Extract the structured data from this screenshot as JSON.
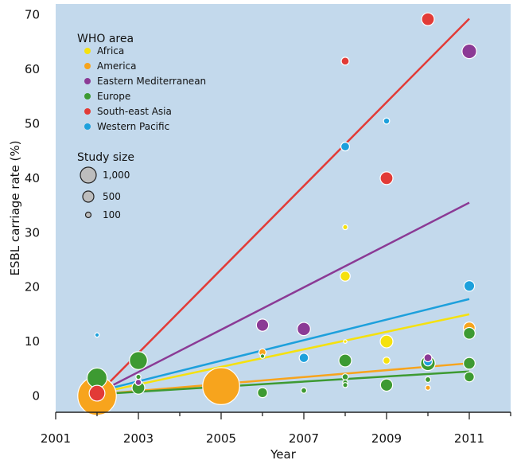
{
  "chart_data": {
    "type": "scatter",
    "xlabel": "Year",
    "ylabel": "ESBL carriage rate (%)",
    "xlim": [
      2001,
      2012
    ],
    "ylim": [
      -3,
      72
    ],
    "x_ticks": [
      2001,
      2003,
      2005,
      2007,
      2009,
      2011
    ],
    "x_tick_labels": [
      "2001",
      "2003",
      "2005",
      "2007",
      "2009",
      "2011"
    ],
    "y_ticks": [
      0,
      10,
      20,
      30,
      40,
      50,
      60,
      70
    ],
    "y_tick_labels": [
      "0",
      "10",
      "20",
      "30",
      "40",
      "50",
      "60",
      "70"
    ],
    "grid": false,
    "background": "#c3d9ec",
    "legend": {
      "position": "top-left",
      "group_title": "WHO area",
      "size_title": "Study size",
      "size_entries": [
        {
          "label": "1,000",
          "size": 1000
        },
        {
          "label": "500",
          "size": 500
        },
        {
          "label": "100",
          "size": 100
        }
      ]
    },
    "series": [
      {
        "name": "Africa",
        "color": "#f5e10e",
        "points": [
          {
            "x": 2003,
            "y": 2.5,
            "size": 30
          },
          {
            "x": 2008,
            "y": 31,
            "size": 20
          },
          {
            "x": 2008,
            "y": 22,
            "size": 80
          },
          {
            "x": 2008,
            "y": 10,
            "size": 10
          },
          {
            "x": 2009,
            "y": 10,
            "size": 130
          },
          {
            "x": 2009,
            "y": 6.5,
            "size": 40
          }
        ],
        "trend": [
          {
            "x": 2002,
            "y": 0.5
          },
          {
            "x": 2011,
            "y": 15
          }
        ]
      },
      {
        "name": "America",
        "color": "#f7a41d",
        "points": [
          {
            "x": 2002,
            "y": 0,
            "size": 1200
          },
          {
            "x": 2005,
            "y": 1.8,
            "size": 1100
          },
          {
            "x": 2006,
            "y": 8,
            "size": 40
          },
          {
            "x": 2010,
            "y": 1.5,
            "size": 20
          },
          {
            "x": 2011,
            "y": 12.5,
            "size": 110
          }
        ],
        "trend": [
          {
            "x": 2002,
            "y": 0.3
          },
          {
            "x": 2011,
            "y": 6
          }
        ]
      },
      {
        "name": "Eastern Mediterranean",
        "color": "#8b3a95",
        "points": [
          {
            "x": 2003,
            "y": 2.5,
            "size": 30
          },
          {
            "x": 2006,
            "y": 13,
            "size": 120
          },
          {
            "x": 2007,
            "y": 12.3,
            "size": 140
          },
          {
            "x": 2010,
            "y": 7,
            "size": 50
          },
          {
            "x": 2011,
            "y": 63.3,
            "size": 170
          }
        ],
        "trend": [
          {
            "x": 2002,
            "y": 0.5
          },
          {
            "x": 2011,
            "y": 35.5
          }
        ]
      },
      {
        "name": "Europe",
        "color": "#3d9a32",
        "points": [
          {
            "x": 2002,
            "y": 3.3,
            "size": 320
          },
          {
            "x": 2003,
            "y": 6.5,
            "size": 260
          },
          {
            "x": 2003,
            "y": 1.5,
            "size": 130
          },
          {
            "x": 2003,
            "y": 3.5,
            "size": 20
          },
          {
            "x": 2006,
            "y": 0.6,
            "size": 80
          },
          {
            "x": 2006,
            "y": 7.3,
            "size": 15
          },
          {
            "x": 2007,
            "y": 1,
            "size": 25
          },
          {
            "x": 2008,
            "y": 6.5,
            "size": 130
          },
          {
            "x": 2008,
            "y": 3.5,
            "size": 30
          },
          {
            "x": 2008,
            "y": 2.5,
            "size": 20
          },
          {
            "x": 2008,
            "y": 2,
            "size": 20
          },
          {
            "x": 2009,
            "y": 2,
            "size": 120
          },
          {
            "x": 2010,
            "y": 6,
            "size": 170
          },
          {
            "x": 2010,
            "y": 3,
            "size": 25
          },
          {
            "x": 2011,
            "y": 11.5,
            "size": 110
          },
          {
            "x": 2011,
            "y": 6,
            "size": 110
          },
          {
            "x": 2011,
            "y": 3.5,
            "size": 80
          }
        ],
        "trend": [
          {
            "x": 2002,
            "y": 0.3
          },
          {
            "x": 2011,
            "y": 4.5
          }
        ]
      },
      {
        "name": "South-east Asia",
        "color": "#e23b37",
        "points": [
          {
            "x": 2002,
            "y": 0.5,
            "size": 200
          },
          {
            "x": 2008,
            "y": 61.5,
            "size": 50
          },
          {
            "x": 2009,
            "y": 40,
            "size": 130
          },
          {
            "x": 2010,
            "y": 69.2,
            "size": 130
          }
        ],
        "trend": [
          {
            "x": 2002,
            "y": 0.2
          },
          {
            "x": 2011,
            "y": 69.3
          }
        ]
      },
      {
        "name": "Western Pacific",
        "color": "#1da0dc",
        "points": [
          {
            "x": 2002,
            "y": 11.2,
            "size": 15
          },
          {
            "x": 2007,
            "y": 7,
            "size": 70
          },
          {
            "x": 2008,
            "y": 45.8,
            "size": 60
          },
          {
            "x": 2009,
            "y": 50.5,
            "size": 30
          },
          {
            "x": 2010,
            "y": 6.3,
            "size": 60
          },
          {
            "x": 2011,
            "y": 20.2,
            "size": 90
          }
        ],
        "trend": [
          {
            "x": 2002,
            "y": 0.8
          },
          {
            "x": 2011,
            "y": 17.8
          }
        ]
      }
    ]
  }
}
